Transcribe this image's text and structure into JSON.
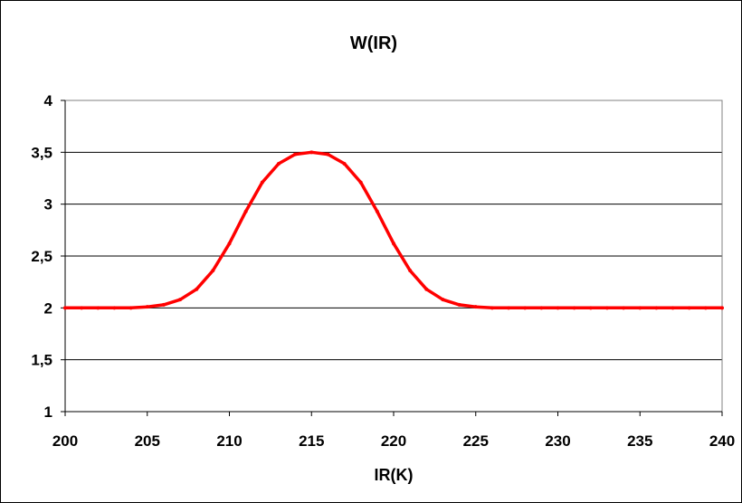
{
  "chart_data": {
    "type": "line",
    "title": "W(IR)",
    "xlabel": "IR(K)",
    "ylabel": "",
    "xlim": [
      200,
      240
    ],
    "ylim": [
      1,
      4
    ],
    "x_ticks": [
      200,
      205,
      210,
      215,
      220,
      225,
      230,
      235,
      240
    ],
    "x_tick_labels": [
      "200",
      "205",
      "210",
      "215",
      "220",
      "225",
      "230",
      "235",
      "240"
    ],
    "y_ticks": [
      1,
      1.5,
      2,
      2.5,
      3,
      3.5,
      4
    ],
    "y_tick_labels": [
      "1",
      "1,5",
      "2",
      "2,5",
      "3",
      "3,5",
      "4"
    ],
    "grid": "horizontal",
    "legend": "none",
    "series": [
      {
        "color": "#ff0000",
        "x": [
          200,
          201,
          202,
          203,
          204,
          205,
          206,
          207,
          208,
          209,
          210,
          211,
          212,
          213,
          214,
          215,
          216,
          217,
          218,
          219,
          220,
          221,
          222,
          223,
          224,
          225,
          226,
          227,
          228,
          229,
          230,
          231,
          232,
          233,
          234,
          235,
          236,
          237,
          238,
          239,
          240
        ],
        "y": [
          2,
          2,
          2,
          2,
          2,
          2.01,
          2.03,
          2.08,
          2.18,
          2.36,
          2.62,
          2.93,
          3.21,
          3.39,
          3.48,
          3.5,
          3.48,
          3.39,
          3.21,
          2.93,
          2.62,
          2.36,
          2.18,
          2.08,
          2.03,
          2.01,
          2,
          2,
          2,
          2,
          2,
          2,
          2,
          2,
          2,
          2,
          2,
          2,
          2,
          2,
          2
        ]
      }
    ]
  }
}
